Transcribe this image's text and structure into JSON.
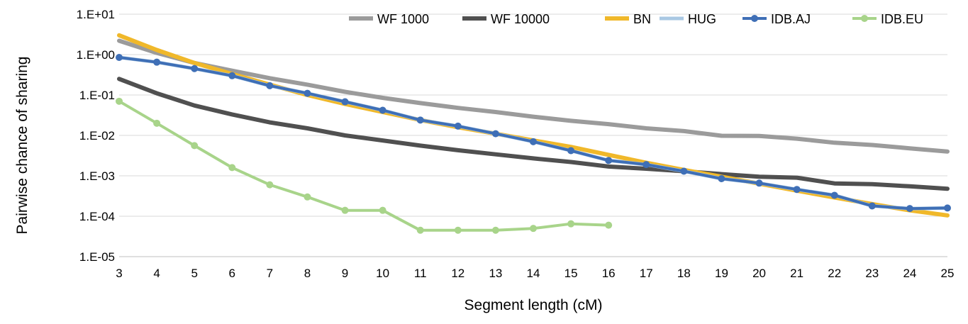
{
  "chart_data": {
    "type": "line",
    "title": "",
    "xlabel": "Segment length (cM)",
    "ylabel": "Pairwise chance of sharing",
    "yscale": "log",
    "ylim": [
      1e-05,
      10
    ],
    "xlim": [
      3,
      25
    ],
    "grid": "horizontal",
    "legend_position": "top-right",
    "x_ticks": [
      "3",
      "4",
      "5",
      "6",
      "7",
      "8",
      "9",
      "10",
      "11",
      "12",
      "13",
      "14",
      "15",
      "16",
      "17",
      "18",
      "19",
      "20",
      "21",
      "22",
      "23",
      "24",
      "25"
    ],
    "y_ticks": [
      {
        "label": "1.E-05",
        "value": 1e-05
      },
      {
        "label": "1.E-04",
        "value": 0.0001
      },
      {
        "label": "1.E-03",
        "value": 0.001
      },
      {
        "label": "1.E-02",
        "value": 0.01
      },
      {
        "label": "1.E-01",
        "value": 0.1
      },
      {
        "label": "1.E+00",
        "value": 1
      },
      {
        "label": "1.E+01",
        "value": 10
      }
    ],
    "series": [
      {
        "name": "WF 1000",
        "color": "#9b9b9b",
        "width": 6,
        "markers": false,
        "x": [
          3,
          4,
          5,
          6,
          7,
          8,
          9,
          10,
          11,
          12,
          13,
          14,
          15,
          16,
          17,
          18,
          19,
          20,
          21,
          22,
          23,
          24,
          25
        ],
        "values": [
          2.2,
          1.1,
          0.62,
          0.4,
          0.26,
          0.18,
          0.12,
          0.085,
          0.063,
          0.048,
          0.038,
          0.029,
          0.023,
          0.019,
          0.015,
          0.0128,
          0.0098,
          0.0097,
          0.0083,
          0.0066,
          0.0058,
          0.0048,
          0.004
        ]
      },
      {
        "name": "WF 10000",
        "color": "#505050",
        "width": 6,
        "markers": false,
        "x": [
          3,
          4,
          5,
          6,
          7,
          8,
          9,
          10,
          11,
          12,
          13,
          14,
          15,
          16,
          17,
          18,
          19,
          20,
          21,
          22,
          23,
          24,
          25
        ],
        "values": [
          0.25,
          0.11,
          0.055,
          0.033,
          0.021,
          0.015,
          0.01,
          0.0075,
          0.0056,
          0.0043,
          0.0034,
          0.0027,
          0.0022,
          0.0017,
          0.0015,
          0.0013,
          0.0011,
          0.00095,
          0.0009,
          0.00065,
          0.00062,
          0.00055,
          0.00048
        ]
      },
      {
        "name": "BN",
        "color": "#f0b82a",
        "width": 6,
        "markers": false,
        "x": [
          3,
          4,
          5,
          6,
          7,
          8,
          9,
          10,
          11,
          12,
          13,
          14,
          15,
          16,
          17,
          18,
          19,
          20,
          21,
          22,
          23,
          24,
          25
        ],
        "values": [
          3.0,
          1.3,
          0.62,
          0.33,
          0.18,
          0.1,
          0.06,
          0.038,
          0.024,
          0.016,
          0.011,
          0.0075,
          0.0052,
          0.0033,
          0.0021,
          0.0014,
          0.00095,
          0.00064,
          0.00043,
          0.00029,
          0.0002,
          0.00014,
          0.000105
        ]
      },
      {
        "name": "HUG",
        "color": "#a9c8e3",
        "width": 5,
        "markers": false,
        "x": [
          3,
          4,
          5,
          6,
          7,
          8,
          9,
          10,
          11,
          12,
          13,
          14,
          15,
          16,
          17,
          18,
          19,
          20,
          21,
          22,
          23,
          24,
          25
        ],
        "values": [
          0.85,
          0.65,
          0.45,
          0.3,
          0.17,
          0.11,
          0.068,
          0.042,
          0.024,
          0.017,
          0.011,
          0.007,
          0.0042,
          0.0024,
          0.0019,
          0.0013,
          0.00085,
          0.00066,
          0.00046,
          0.00033,
          0.00018,
          0.000155,
          0.00016
        ]
      },
      {
        "name": "IDB.AJ",
        "color": "#3f6fb6",
        "width": 4,
        "markers": true,
        "x": [
          3,
          4,
          5,
          6,
          7,
          8,
          9,
          10,
          11,
          12,
          13,
          14,
          15,
          16,
          17,
          18,
          19,
          20,
          21,
          22,
          23,
          24,
          25
        ],
        "values": [
          0.85,
          0.65,
          0.45,
          0.3,
          0.17,
          0.11,
          0.068,
          0.042,
          0.024,
          0.017,
          0.011,
          0.007,
          0.0042,
          0.0024,
          0.0019,
          0.0013,
          0.00085,
          0.00066,
          0.00046,
          0.00033,
          0.00018,
          0.000155,
          0.00016
        ]
      },
      {
        "name": "IDB.EU",
        "color": "#a8d48a",
        "width": 4,
        "markers": true,
        "x": [
          3,
          4,
          5,
          6,
          7,
          8,
          9,
          10,
          11,
          12,
          13,
          14,
          15,
          16
        ],
        "values": [
          0.07,
          0.02,
          0.0056,
          0.0016,
          0.0006,
          0.0003,
          0.00014,
          0.00014,
          4.5e-05,
          4.5e-05,
          4.5e-05,
          5e-05,
          6.5e-05,
          6e-05
        ]
      }
    ]
  }
}
